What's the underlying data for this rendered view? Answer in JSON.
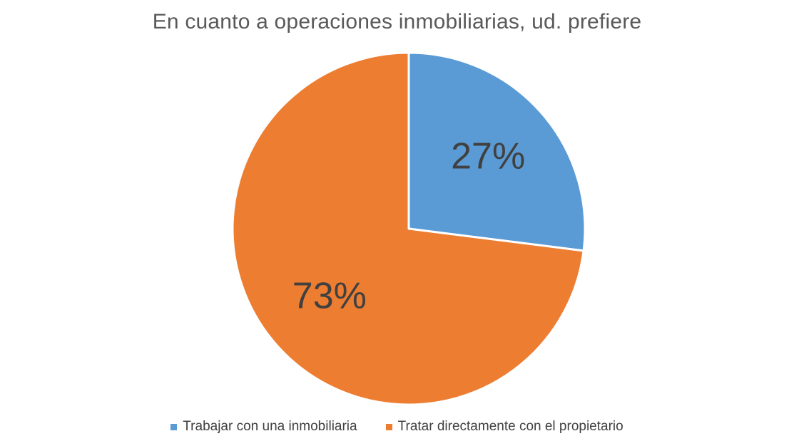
{
  "chart_data": {
    "type": "pie",
    "title": "En cuanto a operaciones inmobiliarias, ud. prefiere",
    "categories": [
      "Trabajar con una inmobiliaria",
      "Tratar directamente con el propietario"
    ],
    "values": [
      27,
      73
    ],
    "data_labels": [
      "27%",
      "73%"
    ],
    "colors": [
      "#5B9BD5",
      "#ED7D31"
    ],
    "legend_position": "bottom"
  }
}
